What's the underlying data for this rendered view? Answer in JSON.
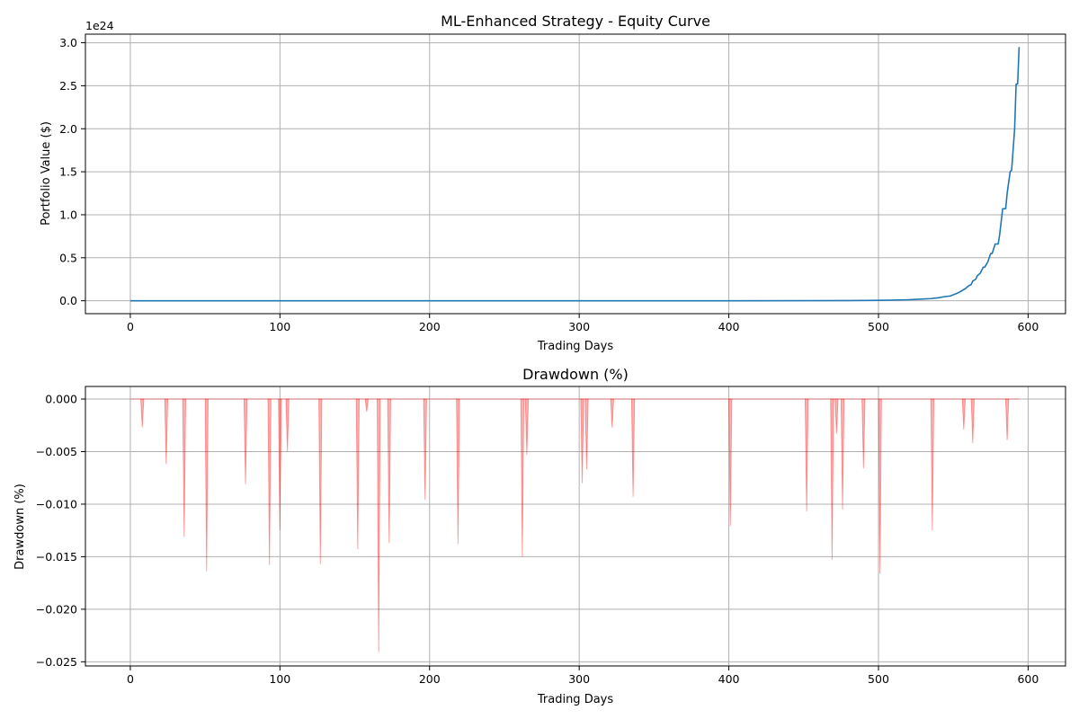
{
  "chart_data": [
    {
      "type": "line",
      "title": "ML-Enhanced Strategy - Equity Curve",
      "xlabel": "Trading Days",
      "ylabel": "Portfolio Value ($)",
      "y_offset_label": "1e24",
      "xlim": [
        -30,
        625
      ],
      "ylim": [
        -0.15,
        3.1
      ],
      "x_ticks": [
        0,
        100,
        200,
        300,
        400,
        500,
        600
      ],
      "x_tick_labels": [
        "0",
        "100",
        "200",
        "300",
        "400",
        "500",
        "600"
      ],
      "y_ticks": [
        0.0,
        0.5,
        1.0,
        1.5,
        2.0,
        2.5,
        3.0
      ],
      "y_tick_labels": [
        "0.0",
        "0.5",
        "1.0",
        "1.5",
        "2.0",
        "2.5",
        "3.0"
      ],
      "grid": true,
      "color": "#1f77b4",
      "series": [
        {
          "x": [
            0,
            100,
            200,
            300,
            400,
            480,
            500,
            510,
            520,
            530,
            535,
            540,
            545,
            548,
            550,
            553,
            555,
            558,
            560,
            562,
            563,
            565,
            566,
            568,
            570,
            571,
            573,
            575,
            576,
            578,
            580,
            581,
            583,
            585,
            586,
            588,
            589,
            591,
            592,
            593,
            594
          ],
          "values": [
            0,
            0,
            0,
            0,
            0,
            0.002,
            0.005,
            0.008,
            0.012,
            0.02,
            0.025,
            0.035,
            0.05,
            0.055,
            0.07,
            0.09,
            0.11,
            0.14,
            0.17,
            0.19,
            0.23,
            0.25,
            0.29,
            0.32,
            0.39,
            0.39,
            0.45,
            0.55,
            0.55,
            0.66,
            0.66,
            0.77,
            1.07,
            1.07,
            1.25,
            1.5,
            1.52,
            2.0,
            2.52,
            2.52,
            2.95
          ]
        }
      ]
    },
    {
      "type": "area",
      "title": "Drawdown (%)",
      "xlabel": "Trading Days",
      "ylabel": "Drawdown (%)",
      "xlim": [
        -30,
        625
      ],
      "ylim": [
        -0.0254,
        0.0012
      ],
      "x_ticks": [
        0,
        100,
        200,
        300,
        400,
        500,
        600
      ],
      "x_tick_labels": [
        "0",
        "100",
        "200",
        "300",
        "400",
        "500",
        "600"
      ],
      "y_ticks": [
        0.0,
        -0.005,
        -0.01,
        -0.015,
        -0.02,
        -0.025
      ],
      "y_tick_labels": [
        "0.000",
        "−0.005",
        "−0.010",
        "−0.015",
        "−0.020",
        "−0.025"
      ],
      "grid": true,
      "color": "#ff0000",
      "x_range": [
        0,
        594
      ],
      "dips": [
        {
          "x": 8,
          "value": -0.0027
        },
        {
          "x": 24,
          "value": -0.0062
        },
        {
          "x": 36,
          "value": -0.0131
        },
        {
          "x": 51,
          "value": -0.0164
        },
        {
          "x": 77,
          "value": -0.0081
        },
        {
          "x": 93,
          "value": -0.0158
        },
        {
          "x": 100,
          "value": -0.0125
        },
        {
          "x": 105,
          "value": -0.005
        },
        {
          "x": 127,
          "value": -0.0157
        },
        {
          "x": 152,
          "value": -0.0143
        },
        {
          "x": 158,
          "value": -0.0012
        },
        {
          "x": 166,
          "value": -0.0241
        },
        {
          "x": 173,
          "value": -0.0137
        },
        {
          "x": 197,
          "value": -0.0096
        },
        {
          "x": 219,
          "value": -0.0138
        },
        {
          "x": 262,
          "value": -0.015
        },
        {
          "x": 265,
          "value": -0.0053
        },
        {
          "x": 302,
          "value": -0.008
        },
        {
          "x": 305,
          "value": -0.0067
        },
        {
          "x": 322,
          "value": -0.0027
        },
        {
          "x": 336,
          "value": -0.0093
        },
        {
          "x": 401,
          "value": -0.0121
        },
        {
          "x": 452,
          "value": -0.0107
        },
        {
          "x": 469,
          "value": -0.0153
        },
        {
          "x": 472,
          "value": -0.0033
        },
        {
          "x": 476,
          "value": -0.0105
        },
        {
          "x": 490,
          "value": -0.0066
        },
        {
          "x": 501,
          "value": -0.0166
        },
        {
          "x": 536,
          "value": -0.0125
        },
        {
          "x": 557,
          "value": -0.0029
        },
        {
          "x": 563,
          "value": -0.0042
        },
        {
          "x": 586,
          "value": -0.0039
        }
      ]
    }
  ]
}
